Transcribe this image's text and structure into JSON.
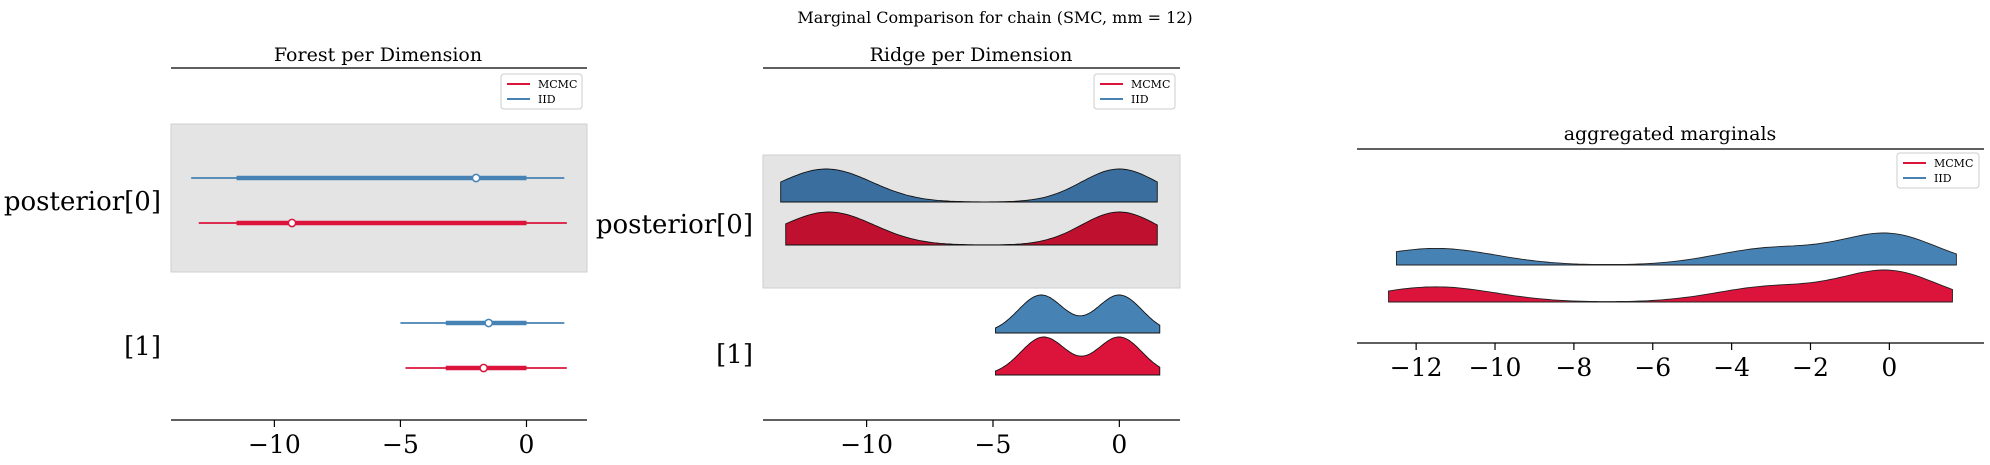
{
  "suptitle": "Marginal Comparison for chain (SMC, mm = 12)",
  "colors": {
    "MCMC": "#dc143c",
    "IID": "#4682b4",
    "IID_dark": "#3a6e9e",
    "MCMC_dark": "#c0102f",
    "band": "#e4e4e4"
  },
  "chart_data": [
    {
      "type": "forest",
      "title": "Forest per Dimension",
      "legend": [
        "MCMC",
        "IID"
      ],
      "legend_position": "top-right",
      "ylabels": [
        "posterior[0]",
        "[1]"
      ],
      "xlim": [
        -14.1,
        2.4
      ],
      "xticks": [
        -10,
        -5,
        0
      ],
      "xtick_labels": [
        "−10",
        "−5",
        "0"
      ],
      "rows": [
        {
          "label": "posterior[0]",
          "series": "IID",
          "whisker": [
            -13.3,
            1.5
          ],
          "hdi50": [
            -11.5,
            0.0
          ],
          "point": -2.0
        },
        {
          "label": "posterior[0]",
          "series": "MCMC",
          "whisker": [
            -13.0,
            1.6
          ],
          "hdi50": [
            -11.5,
            0.0
          ],
          "point": -9.3
        },
        {
          "label": "[1]",
          "series": "IID",
          "whisker": [
            -5.0,
            1.5
          ],
          "hdi50": [
            -3.2,
            0.0
          ],
          "point": -1.5
        },
        {
          "label": "[1]",
          "series": "MCMC",
          "whisker": [
            -4.8,
            1.6
          ],
          "hdi50": [
            -3.2,
            0.0
          ],
          "point": -1.7
        }
      ]
    },
    {
      "type": "ridgeline",
      "title": "Ridge per Dimension",
      "legend": [
        "MCMC",
        "IID"
      ],
      "legend_position": "top-right",
      "ylabels": [
        "posterior[0]",
        "[1]"
      ],
      "xlim": [
        -14.1,
        2.4
      ],
      "xticks": [
        -10,
        -5,
        0
      ],
      "xtick_labels": [
        "−10",
        "−5",
        "0"
      ],
      "ridges": [
        {
          "label": "posterior[0]",
          "series": "IID",
          "x_range": [
            -13.4,
            1.5
          ],
          "modes": [
            [
              -11.6,
              1.8,
              1.0
            ],
            [
              0.0,
              1.5,
              1.0
            ]
          ]
        },
        {
          "label": "posterior[0]",
          "series": "MCMC",
          "x_range": [
            -13.2,
            1.5
          ],
          "modes": [
            [
              -11.5,
              1.8,
              1.0
            ],
            [
              0.0,
              1.5,
              1.0
            ]
          ]
        },
        {
          "label": "[1]",
          "series": "IID",
          "x_range": [
            -4.9,
            1.6
          ],
          "modes": [
            [
              -3.1,
              0.9,
              1.0
            ],
            [
              0.0,
              0.9,
              1.0
            ]
          ]
        },
        {
          "label": "[1]",
          "series": "MCMC",
          "x_range": [
            -4.9,
            1.6
          ],
          "modes": [
            [
              -3.0,
              0.9,
              1.0
            ],
            [
              0.0,
              0.9,
              1.0
            ]
          ]
        }
      ]
    },
    {
      "type": "area",
      "title": "aggregated marginals",
      "legend": [
        "MCMC",
        "IID"
      ],
      "legend_position": "top-right",
      "xlim": [
        -13.5,
        2.4
      ],
      "xticks": [
        -12,
        -10,
        -8,
        -6,
        -4,
        -2,
        0
      ],
      "xtick_labels": [
        "−12",
        "−10",
        "−8",
        "−6",
        "−4",
        "−2",
        "0"
      ],
      "densities": [
        {
          "series": "IID",
          "x_range": [
            -12.5,
            1.7
          ],
          "modes": [
            [
              -11.5,
              1.5,
              0.55
            ],
            [
              -3.0,
              1.4,
              0.55
            ],
            [
              0.0,
              1.2,
              1.0
            ]
          ]
        },
        {
          "series": "MCMC",
          "x_range": [
            -12.7,
            1.6
          ],
          "modes": [
            [
              -11.5,
              1.5,
              0.5
            ],
            [
              -3.0,
              1.4,
              0.5
            ],
            [
              0.0,
              1.2,
              1.0
            ]
          ]
        }
      ]
    }
  ]
}
